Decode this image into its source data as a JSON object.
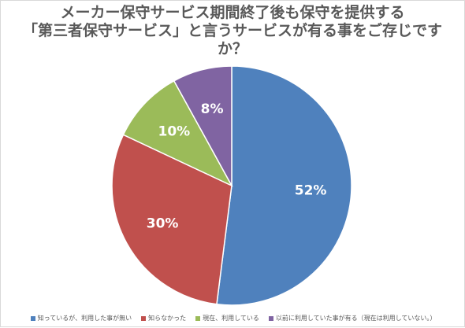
{
  "chart_data": {
    "type": "pie",
    "title_lines": [
      "メーカー保守サービス期間終了後も保守を提供する",
      "「第三者保守サービス」と言うサービスが有る事をご存じです",
      "か？"
    ],
    "slices": [
      {
        "label": "知っているが、利用した事が無い",
        "value": 52,
        "data_label": "52%",
        "color": "#4f81bd"
      },
      {
        "label": "知らなかった",
        "value": 30,
        "data_label": "30%",
        "color": "#c0504d"
      },
      {
        "label": "現在、利用している",
        "value": 10,
        "data_label": "10%",
        "color": "#9bbb59"
      },
      {
        "label": "以前に利用していた事が有る（現在は利用していない。）",
        "value": 8,
        "data_label": "8%",
        "color": "#8064a2"
      }
    ],
    "start_angle": "12 o'clock",
    "direction": "clockwise",
    "legend_position": "bottom"
  }
}
